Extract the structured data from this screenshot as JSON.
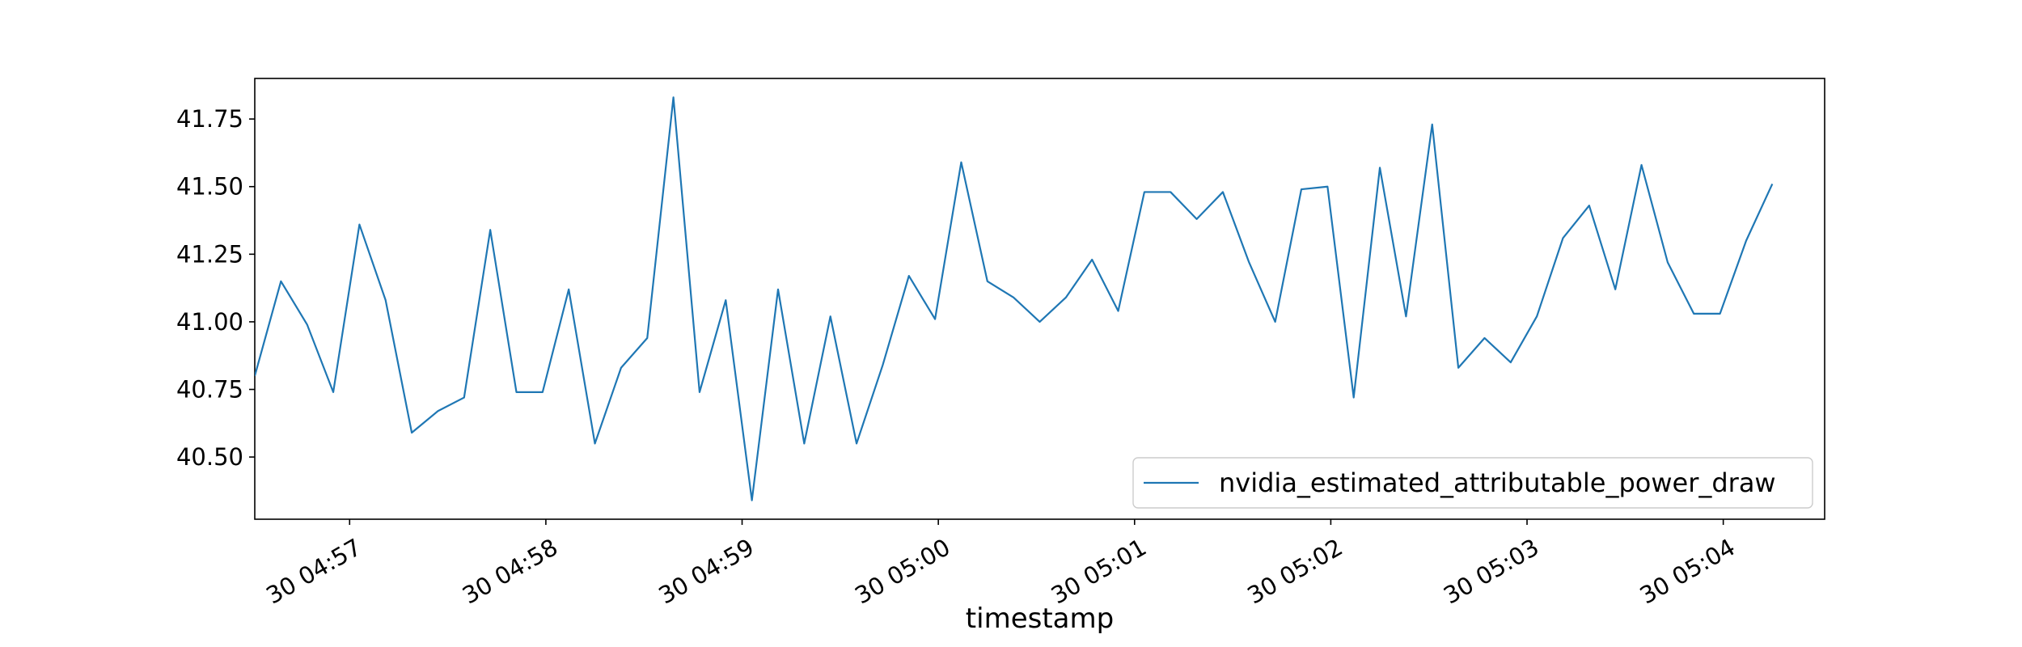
{
  "chart_data": {
    "type": "line",
    "title": "",
    "xlabel": "timestamp",
    "ylabel": "",
    "x_start": "30 04:56:31",
    "x_step_seconds": 8,
    "xlim": [
      "30 04:56:31",
      "30 05:04:31"
    ],
    "ylim": [
      40.27,
      41.9
    ],
    "grid": false,
    "legend_position": "lower-right",
    "x_ticks": [
      {
        "time": "30 04:57:00",
        "label": "30 04:57"
      },
      {
        "time": "30 04:58:00",
        "label": "30 04:58"
      },
      {
        "time": "30 04:59:00",
        "label": "30 04:59"
      },
      {
        "time": "30 05:00:00",
        "label": "30 05:00"
      },
      {
        "time": "30 05:01:00",
        "label": "30 05:01"
      },
      {
        "time": "30 05:02:00",
        "label": "30 05:02"
      },
      {
        "time": "30 05:03:00",
        "label": "30 05:03"
      },
      {
        "time": "30 05:04:00",
        "label": "30 05:04"
      }
    ],
    "y_ticks": [
      {
        "value": 40.5,
        "label": "40.50"
      },
      {
        "value": 40.75,
        "label": "40.75"
      },
      {
        "value": 41.0,
        "label": "41.00"
      },
      {
        "value": 41.25,
        "label": "41.25"
      },
      {
        "value": 41.5,
        "label": "41.50"
      },
      {
        "value": 41.75,
        "label": "41.75"
      }
    ],
    "series": [
      {
        "name": "nvidia_estimated_attributable_power_draw",
        "color": "#1f77b4",
        "values": [
          40.8,
          41.15,
          40.99,
          40.74,
          41.36,
          41.08,
          40.59,
          40.67,
          40.72,
          41.34,
          40.74,
          40.74,
          41.12,
          40.55,
          40.83,
          40.94,
          41.83,
          40.74,
          41.08,
          40.34,
          41.12,
          40.55,
          41.02,
          40.55,
          40.84,
          41.17,
          41.01,
          41.59,
          41.15,
          41.09,
          41.0,
          41.09,
          41.23,
          41.04,
          41.48,
          41.48,
          41.38,
          41.48,
          41.22,
          41.0,
          41.49,
          41.5,
          40.72,
          41.57,
          41.02,
          41.73,
          40.83,
          40.94,
          40.85,
          41.02,
          41.31,
          41.43,
          41.12,
          41.58,
          41.22,
          41.03,
          41.03,
          41.3,
          41.51
        ]
      }
    ]
  }
}
